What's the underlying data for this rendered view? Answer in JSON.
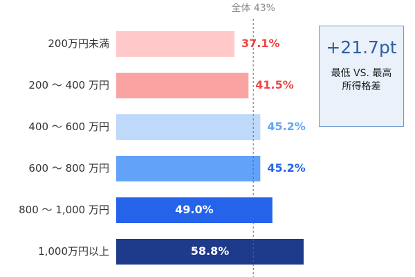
{
  "chart_data": {
    "type": "bar",
    "orientation": "horizontal",
    "categories": [
      "200万円未満",
      "200 ～ 400 万円",
      "400 ～ 600 万円",
      "600 ～ 800 万円",
      "800 ～ 1,000 万円",
      "1,000万円以上"
    ],
    "values": [
      37.1,
      41.5,
      45.2,
      45.2,
      49.0,
      58.8
    ],
    "value_labels": [
      "37.1%",
      "41.5%",
      "45.2%",
      "45.2%",
      "49.0%",
      "58.8%"
    ],
    "bar_colors": [
      "#ffc9c9",
      "#fba3a3",
      "#bfd9fb",
      "#62a2f8",
      "#2563eb",
      "#1e3a8a"
    ],
    "value_label_colors": [
      "#ef4444",
      "#ef4444",
      "#60a5fa",
      "#2563eb",
      "#ffffff",
      "#ffffff"
    ],
    "value_label_inside": [
      false,
      false,
      false,
      false,
      true,
      true
    ],
    "reference": {
      "value": 43,
      "label": "全体  43%"
    },
    "xlim": [
      0,
      100
    ],
    "grid": false,
    "legend": "none"
  },
  "callout": {
    "value": "+21.7pt",
    "line1": "最低 VS. 最高",
    "line2": "所得格差"
  }
}
